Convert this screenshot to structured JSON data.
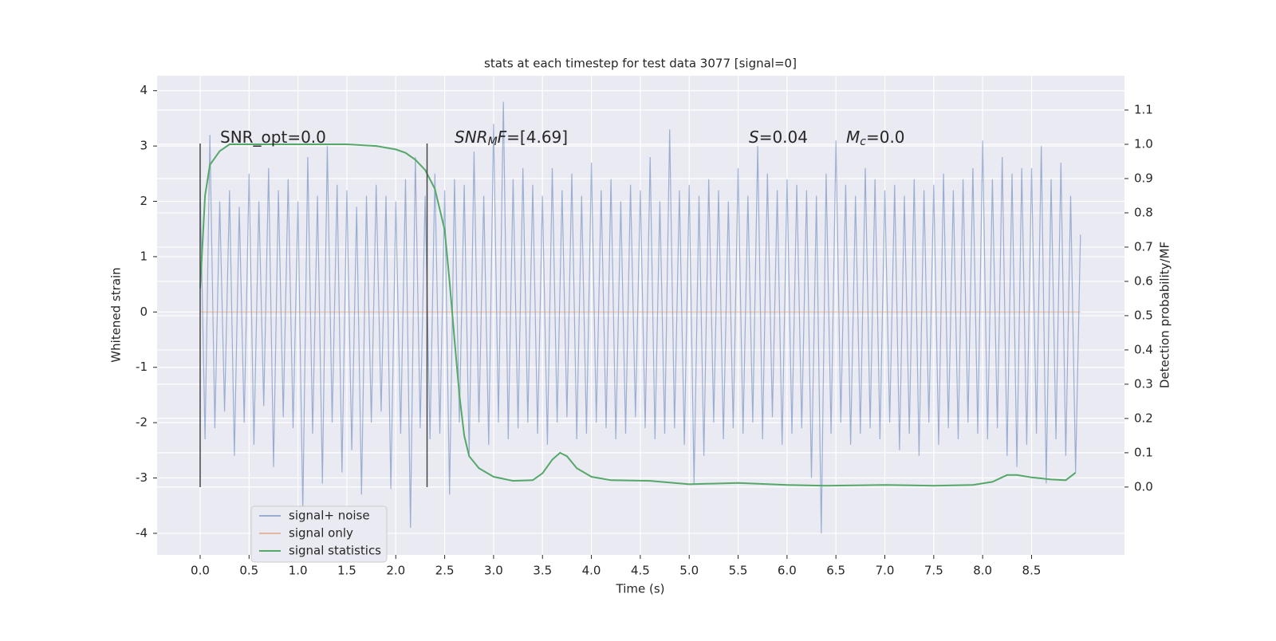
{
  "chart_data": {
    "type": "line",
    "title": "stats at each timestep for test data 3077 [signal=0]",
    "xlabel": "Time (s)",
    "ylabel": "Whitened strain",
    "y2label": "Detection probability/MF",
    "xlim": [
      -0.44,
      9.45
    ],
    "ylim": [
      -4.39,
      4.27
    ],
    "y2lim": [
      -0.198,
      1.2
    ],
    "xticks": [
      {
        "value": 0,
        "label": "0.0"
      },
      0.5,
      {
        "value": 1,
        "label": "1.0"
      },
      1.5,
      {
        "value": 2,
        "label": "2.0"
      },
      2.5,
      {
        "value": 3,
        "label": "3.0"
      },
      3.5,
      {
        "value": 4,
        "label": "4.0"
      },
      4.5,
      {
        "value": 5,
        "label": "5.0"
      },
      5.5,
      {
        "value": 6,
        "label": "6.0"
      },
      6.5,
      {
        "value": 7,
        "label": "7.0"
      },
      7.5,
      {
        "value": 8,
        "label": "8.0"
      },
      8.5
    ],
    "yticks": [
      -4,
      -3,
      -2,
      -1,
      0,
      1,
      2,
      3,
      4
    ],
    "y2ticks": [
      {
        "value": 0,
        "label": "0.0"
      },
      0.1,
      0.2,
      0.3,
      0.4,
      0.5,
      0.6,
      0.7,
      0.8,
      0.9,
      {
        "value": 1,
        "label": "1.0"
      },
      1.1
    ],
    "grid": true,
    "legend": "lower left",
    "vlines": [
      0,
      2.32
    ],
    "annotations": [
      [
        {
          "text": "SNR_opt=0.0",
          "style": "normal"
        }
      ],
      [
        {
          "text": "SNR",
          "style": "italic"
        },
        {
          "text": "M",
          "style": "sub"
        },
        {
          "text": "F",
          "style": "italic"
        },
        {
          "text": "=[4.69]",
          "style": "normal"
        }
      ],
      [
        {
          "text": "S",
          "style": "italic"
        },
        {
          "text": "=0.04",
          "style": "normal"
        }
      ],
      [
        {
          "text": "M",
          "style": "italic"
        },
        {
          "text": "c",
          "style": "sub"
        },
        {
          "text": "=0.0",
          "style": "normal"
        }
      ]
    ],
    "series": [
      {
        "name": "signal+ noise",
        "color": "#4c72b0",
        "opacity": 0.5,
        "x": [
          0,
          0.05,
          0.1,
          0.15,
          0.2,
          0.25,
          0.3,
          0.35,
          0.4,
          0.45,
          0.5,
          0.55,
          0.6,
          0.65,
          0.7,
          0.75,
          0.8,
          0.85,
          0.9,
          0.95,
          1,
          1.05,
          1.1,
          1.15,
          1.2,
          1.25,
          1.3,
          1.35,
          1.4,
          1.45,
          1.5,
          1.55,
          1.6,
          1.65,
          1.7,
          1.75,
          1.8,
          1.85,
          1.9,
          1.95,
          2,
          2.05,
          2.1,
          2.15,
          2.2,
          2.25,
          2.3,
          2.35,
          2.4,
          2.45,
          2.5,
          2.55,
          2.6,
          2.65,
          2.7,
          2.75,
          2.8,
          2.85,
          2.9,
          2.95,
          3,
          3.05,
          3.1,
          3.15,
          3.2,
          3.25,
          3.3,
          3.35,
          3.4,
          3.45,
          3.5,
          3.55,
          3.6,
          3.65,
          3.7,
          3.75,
          3.8,
          3.85,
          3.9,
          3.95,
          4,
          4.05,
          4.1,
          4.15,
          4.2,
          4.25,
          4.3,
          4.35,
          4.4,
          4.45,
          4.5,
          4.55,
          4.6,
          4.65,
          4.7,
          4.75,
          4.8,
          4.85,
          4.9,
          4.95,
          5,
          5.05,
          5.1,
          5.15,
          5.2,
          5.25,
          5.3,
          5.35,
          5.4,
          5.45,
          5.5,
          5.55,
          5.6,
          5.65,
          5.7,
          5.75,
          5.8,
          5.85,
          5.9,
          5.95,
          6,
          6.05,
          6.1,
          6.15,
          6.2,
          6.25,
          6.3,
          6.35,
          6.4,
          6.45,
          6.5,
          6.55,
          6.6,
          6.65,
          6.7,
          6.75,
          6.8,
          6.85,
          6.9,
          6.95,
          7,
          7.05,
          7.1,
          7.15,
          7.2,
          7.25,
          7.3,
          7.35,
          7.4,
          7.45,
          7.5,
          7.55,
          7.6,
          7.65,
          7.7,
          7.75,
          7.8,
          7.85,
          7.9,
          7.95,
          8,
          8.05,
          8.1,
          8.15,
          8.2,
          8.25,
          8.3,
          8.35,
          8.4,
          8.45,
          8.5,
          8.55,
          8.6,
          8.65,
          8.7,
          8.75,
          8.8,
          8.85,
          8.9,
          8.95,
          9
        ],
        "values": [
          2.3,
          -2.3,
          3.2,
          -2.1,
          2.0,
          -1.8,
          2.2,
          -2.6,
          1.9,
          -2.0,
          2.5,
          -2.4,
          2.0,
          -1.7,
          2.6,
          -2.8,
          2.2,
          -1.9,
          2.4,
          -2.1,
          2.0,
          -3.6,
          2.8,
          -2.2,
          2.1,
          -3.1,
          3.0,
          -2.0,
          2.3,
          -2.9,
          2.2,
          -2.5,
          1.9,
          -3.3,
          2.1,
          -2.0,
          2.3,
          -1.8,
          2.1,
          -3.2,
          2.0,
          -2.2,
          2.4,
          -3.9,
          2.8,
          -2.1,
          2.1,
          -2.3,
          2.5,
          -2.2,
          2.2,
          -3.3,
          2.4,
          -2.0,
          2.3,
          -2.6,
          2.9,
          -2.0,
          2.1,
          -2.4,
          3.4,
          -2.0,
          3.8,
          -2.3,
          2.4,
          -2.1,
          2.6,
          -2.0,
          2.3,
          -2.2,
          2.1,
          -2.4,
          2.6,
          -2.0,
          2.2,
          -1.9,
          2.5,
          -2.3,
          2.1,
          -2.2,
          2.7,
          -2.0,
          2.2,
          -2.1,
          2.4,
          -2.3,
          2.0,
          -2.2,
          2.3,
          -1.9,
          2.2,
          -2.1,
          2.8,
          -2.3,
          2.0,
          -2.2,
          3.3,
          -2.1,
          2.2,
          -2.4,
          2.3,
          -3.1,
          2.1,
          -2.6,
          2.4,
          -2.0,
          2.2,
          -2.3,
          2.0,
          -2.1,
          2.6,
          -2.2,
          2.1,
          -2.0,
          3.0,
          -2.3,
          2.5,
          -1.9,
          2.2,
          -2.4,
          2.4,
          -2.2,
          2.3,
          -2.1,
          2.2,
          -3.0,
          2.1,
          -4.0,
          2.5,
          -2.2,
          3.1,
          -2.0,
          2.3,
          -2.4,
          2.1,
          -2.2,
          2.6,
          -2.1,
          2.4,
          -2.3,
          2.2,
          -2.0,
          2.3,
          -2.5,
          2.1,
          -2.2,
          2.4,
          -2.6,
          2.2,
          -2.0,
          2.3,
          -2.4,
          2.5,
          -2.1,
          2.2,
          -2.3,
          2.4,
          -2.0,
          2.6,
          -2.2,
          3.1,
          -2.3,
          2.4,
          -2.1,
          2.8,
          -2.6,
          2.5,
          -2.8,
          2.6,
          -2.4,
          2.6,
          -2.2,
          3.0,
          -3.1,
          2.4,
          -2.3,
          2.7,
          -2.6,
          2.1,
          -2.9,
          1.4
        ]
      },
      {
        "name": "signal only",
        "color": "#dd8452",
        "opacity": 0.5,
        "x": [
          0,
          9
        ],
        "values": [
          0,
          0
        ]
      },
      {
        "name": "signal statistics",
        "color": "#55a868",
        "opacity": 1,
        "axis": "y2",
        "x": [
          0,
          0.05,
          0.1,
          0.2,
          0.3,
          0.5,
          1,
          1.5,
          1.8,
          2,
          2.1,
          2.2,
          2.3,
          2.4,
          2.5,
          2.55,
          2.6,
          2.65,
          2.7,
          2.75,
          2.85,
          3,
          3.2,
          3.4,
          3.5,
          3.6,
          3.68,
          3.75,
          3.85,
          4,
          4.2,
          4.6,
          5,
          5.5,
          6,
          6.4,
          7,
          7.5,
          7.9,
          8.1,
          8.25,
          8.35,
          8.5,
          8.7,
          8.85,
          8.95
        ],
        "values": [
          0.58,
          0.85,
          0.94,
          0.98,
          1.0,
          1.0,
          1.0,
          1.0,
          0.995,
          0.985,
          0.975,
          0.955,
          0.925,
          0.87,
          0.75,
          0.6,
          0.43,
          0.27,
          0.15,
          0.09,
          0.055,
          0.03,
          0.018,
          0.02,
          0.04,
          0.08,
          0.1,
          0.09,
          0.055,
          0.03,
          0.02,
          0.018,
          0.008,
          0.012,
          0.006,
          0.004,
          0.006,
          0.004,
          0.006,
          0.015,
          0.035,
          0.035,
          0.028,
          0.022,
          0.02,
          0.042
        ]
      }
    ]
  }
}
